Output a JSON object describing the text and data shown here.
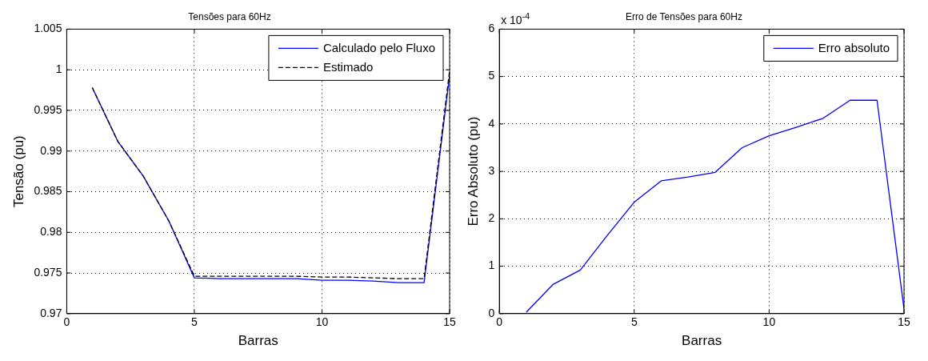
{
  "chart_data": [
    {
      "type": "line",
      "title": "Tensões para 60Hz",
      "xlabel": "Barras",
      "ylabel": "Tensão (pu)",
      "x": [
        1,
        2,
        3,
        4,
        5,
        6,
        7,
        8,
        9,
        10,
        11,
        12,
        13,
        14,
        15
      ],
      "series": [
        {
          "name": "Calculado pelo Fluxo",
          "color": "#0000ff",
          "line_style": "solid",
          "values": [
            0.9978,
            0.9912,
            0.9869,
            0.9814,
            0.9744,
            0.9743,
            0.9743,
            0.9743,
            0.9743,
            0.9741,
            0.9741,
            0.974,
            0.9738,
            0.9738,
            0.9993
          ]
        },
        {
          "name": "Estimado",
          "color": "#000000",
          "line_style": "dashed",
          "values": [
            0.9978,
            0.9912,
            0.9869,
            0.9814,
            0.9746,
            0.9746,
            0.9746,
            0.9746,
            0.9746,
            0.9745,
            0.9745,
            0.9744,
            0.9743,
            0.9743,
            0.9999
          ]
        }
      ],
      "xlim": [
        0,
        15
      ],
      "xticks": [
        0,
        5,
        10,
        15
      ],
      "ylim": [
        0.97,
        1.005
      ],
      "yticks": [
        0.97,
        0.975,
        0.98,
        0.985,
        0.99,
        0.995,
        1,
        1.005
      ],
      "grid": true,
      "legend": "top right",
      "marker": "none"
    },
    {
      "type": "line",
      "title": "Erro de Tensões para 60Hz",
      "xlabel": "Barras",
      "ylabel": "Erro Absoluto (pu)",
      "annotations": [
        "x 10$^{-4}$"
      ],
      "x": [
        1,
        2,
        3,
        4,
        5,
        6,
        7,
        8,
        9,
        10,
        11,
        12,
        13,
        14,
        15
      ],
      "series": [
        {
          "name": "Erro absoluto",
          "color": "#0000ff",
          "line_style": "solid",
          "values": [
            0.03,
            0.62,
            0.92,
            1.65,
            2.35,
            2.8,
            2.88,
            2.98,
            3.5,
            3.75,
            3.93,
            4.12,
            4.5,
            4.5,
            0.1
          ]
        }
      ],
      "xlim": [
        0,
        15
      ],
      "xticks": [
        0,
        5,
        10,
        15
      ],
      "ylim": [
        0,
        6
      ],
      "yticks": [
        0,
        1,
        2,
        3,
        4,
        5,
        6
      ],
      "grid": true,
      "legend": "top right",
      "marker": "none"
    }
  ]
}
